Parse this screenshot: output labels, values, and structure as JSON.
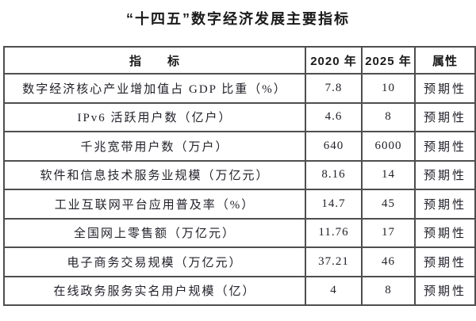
{
  "title": "“十四五”数字经济发展主要指标",
  "colors": {
    "background": "#ffffff",
    "border": "#4e4e4e",
    "text": "#1c1c1c"
  },
  "table": {
    "headers": [
      "指　　标",
      "2020 年",
      "2025 年",
      "属性"
    ],
    "rows": [
      {
        "indicator": "数字经济核心产业增加值占 GDP 比重（%）",
        "y2020": "7.8",
        "y2025": "10",
        "attr": "预期性"
      },
      {
        "indicator": "IPv6 活跃用户数（亿户）",
        "y2020": "4.6",
        "y2025": "8",
        "attr": "预期性"
      },
      {
        "indicator": "千兆宽带用户数（万户）",
        "y2020": "640",
        "y2025": "6000",
        "attr": "预期性"
      },
      {
        "indicator": "软件和信息技术服务业规模（万亿元）",
        "y2020": "8.16",
        "y2025": "14",
        "attr": "预期性"
      },
      {
        "indicator": "工业互联网平台应用普及率（%）",
        "y2020": "14.7",
        "y2025": "45",
        "attr": "预期性"
      },
      {
        "indicator": "全国网上零售额（万亿元）",
        "y2020": "11.76",
        "y2025": "17",
        "attr": "预期性"
      },
      {
        "indicator": "电子商务交易规模（万亿元）",
        "y2020": "37.21",
        "y2025": "46",
        "attr": "预期性"
      },
      {
        "indicator": "在线政务服务实名用户规模（亿）",
        "y2020": "4",
        "y2025": "8",
        "attr": "预期性"
      }
    ]
  }
}
